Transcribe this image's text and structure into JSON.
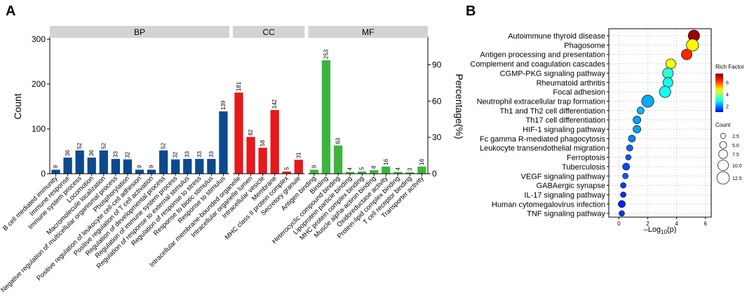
{
  "panel_labels": {
    "a": "A",
    "b": "B"
  },
  "colors": {
    "bp": "#0b4a8f",
    "cc": "#e41a1c",
    "mf": "#3db53d",
    "strip": "#d3d3d3",
    "grid": "#d9d9d9",
    "pt_stroke": "#222222"
  },
  "chart_data": [
    {
      "type": "bar",
      "title": "",
      "ylabel": "Count",
      "y2label": "Percentage(%)",
      "ylim": [
        0,
        300
      ],
      "yticks": [
        0,
        100,
        200,
        300
      ],
      "y2ticks": [
        0,
        30,
        60,
        90
      ],
      "y2_per_unit": 0.3703,
      "grid": false,
      "groups": [
        {
          "name": "BP",
          "color_key": "bp",
          "categories": [
            "B cell mediated immunity",
            "Immune response",
            "Immune system process",
            "Locomotion",
            "Macromolecule localization",
            "Negative regulation of multicellular organismal process",
            "Phosphorylation",
            "Positive regulation of leukocyte cell-cell adhesion",
            "Positive regulation of T cell activation",
            "Regulation of developmental process",
            "Regulation of immune system process",
            "Regulation of response to external stimulus",
            "Regulation of response to stress",
            "Response to biotic stimulus",
            "Response to stimulus"
          ],
          "values": [
            9,
            36,
            52,
            36,
            52,
            33,
            32,
            9,
            9,
            52,
            32,
            33,
            33,
            33,
            139
          ],
          "labels": [
            "9",
            "36",
            "52",
            "36",
            "52",
            "33",
            "32",
            "9",
            "9",
            "52",
            "32",
            "33",
            "33",
            "33",
            "139"
          ]
        },
        {
          "name": "CC",
          "color_key": "cc",
          "categories": [
            "Intracellular membrane-bounded organelle",
            "Intracellular organelle lumen",
            "Intracellular vesicle",
            "Membrane",
            "MHC class II protein complex",
            "Secretory granule"
          ],
          "values": [
            181,
            82,
            58,
            142,
            5,
            31
          ],
          "labels": [
            "181",
            "82",
            "58",
            "142",
            "5",
            "31"
          ]
        },
        {
          "name": "MF",
          "color_key": "mf",
          "categories": [
            "Antigen binding",
            "Binding",
            "Heterocyclic compound binding",
            "Lipoprotein particle binding",
            "MHC protein complex binding",
            "Muscle alpha-actinin binding",
            "Oxidoreductase activity",
            "Protein-lipid complex binding",
            "T cell receptor binding",
            "Transporter activity"
          ],
          "values": [
            9,
            253,
            63,
            4,
            5,
            8,
            16,
            4,
            3,
            16
          ],
          "labels": [
            "9",
            "253",
            "63",
            "4",
            "5",
            "8",
            "16",
            "4",
            "3",
            "16"
          ]
        }
      ]
    },
    {
      "type": "scatter",
      "title": "",
      "xlabel_prefix": "–Log",
      "xlabel_sub": "10",
      "xlabel_suffix": "(p)",
      "xlim": [
        -0.7,
        6.4
      ],
      "xticks": [
        0,
        2,
        4,
        6
      ],
      "grid": true,
      "categories": [
        "Autoimmune thyroid disease",
        "Phagosome",
        "Antigen processing and presentation",
        "Complement and coagulation cascades",
        "CGMP-PKG signaling pathway",
        "Rheumatoid arthritis",
        "Focal adhesion",
        "Neutrophil extracellular trap formation",
        "Th1 and Th2 cell differentiation",
        "Th17 cell differentiation",
        "HIF-1 signaling pathway",
        "Fc gamma R-mediated phagocytosis",
        "Leukocyte transendothelial migration",
        "Ferroptosis",
        "Tuberculosis",
        "VEGF signaling pathway",
        "GABAergic synapse",
        "IL-17 signaling pathway",
        "Human cytomegalovirus infection",
        "TNF signaling pathway"
      ],
      "x": [
        5.2,
        5.1,
        4.7,
        3.6,
        3.4,
        3.4,
        3.2,
        2.0,
        1.5,
        1.25,
        1.25,
        0.9,
        0.75,
        0.65,
        0.5,
        0.45,
        0.3,
        0.3,
        0.2,
        0.2
      ],
      "count": [
        11,
        12,
        10,
        9,
        10,
        9,
        11,
        12,
        5,
        6,
        6,
        5,
        4,
        3,
        5,
        3,
        3,
        3,
        5,
        3
      ],
      "rich_factor": [
        7.3,
        4.8,
        6.3,
        4.6,
        3.2,
        3.0,
        3.0,
        2.3,
        2.4,
        2.2,
        2.2,
        2.0,
        1.8,
        1.7,
        1.6,
        1.7,
        1.5,
        1.4,
        1.3,
        1.4
      ],
      "color_legend": {
        "title": "Rich Factor",
        "min": 1,
        "max": 7.5,
        "ticks": [
          2,
          4,
          6
        ]
      },
      "size_legend": {
        "title": "Count",
        "values": [
          2.5,
          5.0,
          7.5,
          10.0,
          12.5
        ],
        "labels": [
          "2.5",
          "5.0",
          "7.5",
          "10.0",
          "12.5"
        ]
      }
    }
  ]
}
